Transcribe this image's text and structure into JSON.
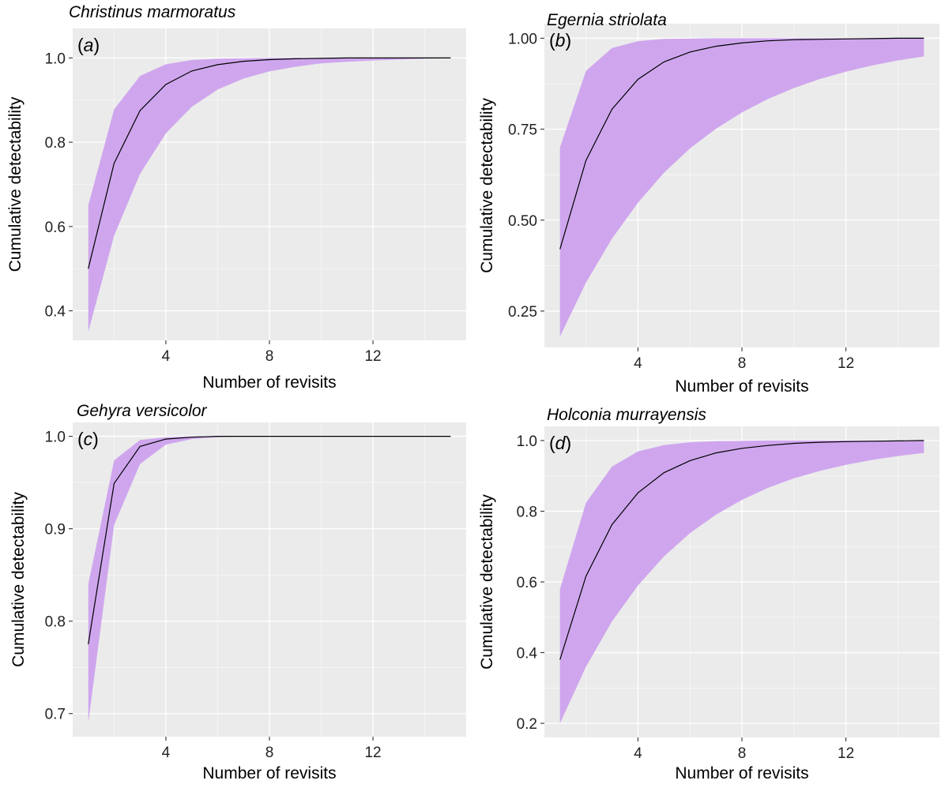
{
  "colors": {
    "panel_background": "#ebebeb",
    "gridline": "#ffffff",
    "band_fill": "#cfa6ee",
    "line": "#000000"
  },
  "chart_data": [
    {
      "type": "area",
      "panel": "a",
      "title": "Christinus marmoratus",
      "xlabel": "Number of revisits",
      "ylabel": "Cumulative detectability",
      "xlim": [
        0.4,
        15.6
      ],
      "ylim": [
        0.33,
        1.07
      ],
      "xticks": [
        4,
        8,
        12
      ],
      "yticks": [
        0.4,
        0.6,
        0.8,
        1.0
      ],
      "ytick_labels": [
        "0.4",
        "0.6",
        "0.8",
        "1.0"
      ],
      "grid": true,
      "x": [
        1,
        2,
        3,
        4,
        5,
        6,
        7,
        8,
        9,
        10,
        11,
        12,
        13,
        14,
        15
      ],
      "series": [
        {
          "role": "mean",
          "values": [
            0.5,
            0.75,
            0.875,
            0.937,
            0.969,
            0.984,
            0.992,
            0.996,
            0.998,
            0.999,
            1.0,
            1.0,
            1.0,
            1.0,
            1.0
          ]
        },
        {
          "role": "upper",
          "values": [
            0.65,
            0.878,
            0.957,
            0.985,
            0.995,
            0.998,
            0.999,
            1.0,
            1.0,
            1.0,
            1.0,
            1.0,
            1.0,
            1.0,
            1.0
          ]
        },
        {
          "role": "lower",
          "values": [
            0.35,
            0.578,
            0.725,
            0.821,
            0.884,
            0.925,
            0.951,
            0.968,
            0.979,
            0.987,
            0.991,
            0.994,
            0.996,
            0.998,
            0.999
          ]
        }
      ]
    },
    {
      "type": "area",
      "panel": "b",
      "title": "Egernia striolata",
      "xlabel": "Number of revisits",
      "ylabel": "Cumulative detectability",
      "xlim": [
        0.4,
        15.6
      ],
      "ylim": [
        0.15,
        1.04
      ],
      "xticks": [
        4,
        8,
        12
      ],
      "yticks": [
        0.25,
        0.5,
        0.75,
        1.0
      ],
      "ytick_labels": [
        "0.25",
        "0.50",
        "0.75",
        "1.00"
      ],
      "grid": true,
      "x": [
        1,
        2,
        3,
        4,
        5,
        6,
        7,
        8,
        9,
        10,
        11,
        12,
        13,
        14,
        15
      ],
      "series": [
        {
          "role": "mean",
          "values": [
            0.42,
            0.664,
            0.805,
            0.887,
            0.935,
            0.962,
            0.978,
            0.987,
            0.993,
            0.996,
            0.997,
            0.998,
            0.999,
            1.0,
            1.0
          ]
        },
        {
          "role": "upper",
          "values": [
            0.7,
            0.91,
            0.973,
            0.992,
            0.998,
            0.999,
            1.0,
            1.0,
            1.0,
            1.0,
            1.0,
            1.0,
            1.0,
            1.0,
            1.0
          ]
        },
        {
          "role": "lower",
          "values": [
            0.18,
            0.328,
            0.449,
            0.548,
            0.63,
            0.697,
            0.751,
            0.796,
            0.833,
            0.863,
            0.888,
            0.908,
            0.925,
            0.939,
            0.95
          ]
        }
      ]
    },
    {
      "type": "area",
      "panel": "c",
      "title": "Gehyra versicolor",
      "xlabel": "Number of revisits",
      "ylabel": "Cumulative detectability",
      "xlim": [
        0.4,
        15.6
      ],
      "ylim": [
        0.675,
        1.015
      ],
      "xticks": [
        4,
        8,
        12
      ],
      "yticks": [
        0.7,
        0.8,
        0.9,
        1.0
      ],
      "ytick_labels": [
        "0.7",
        "0.8",
        "0.9",
        "1.0"
      ],
      "grid": true,
      "x": [
        1,
        2,
        3,
        4,
        5,
        6,
        7,
        8,
        9,
        10,
        11,
        12,
        13,
        14,
        15
      ],
      "series": [
        {
          "role": "mean",
          "values": [
            0.775,
            0.949,
            0.989,
            0.997,
            0.999,
            1.0,
            1.0,
            1.0,
            1.0,
            1.0,
            1.0,
            1.0,
            1.0,
            1.0,
            1.0
          ]
        },
        {
          "role": "upper",
          "values": [
            0.84,
            0.974,
            0.996,
            0.999,
            1.0,
            1.0,
            1.0,
            1.0,
            1.0,
            1.0,
            1.0,
            1.0,
            1.0,
            1.0,
            1.0
          ]
        },
        {
          "role": "lower",
          "values": [
            0.69,
            0.904,
            0.97,
            0.991,
            0.997,
            0.999,
            1.0,
            1.0,
            1.0,
            1.0,
            1.0,
            1.0,
            1.0,
            1.0,
            1.0
          ]
        }
      ]
    },
    {
      "type": "area",
      "panel": "d",
      "title": "Holconia murrayensis",
      "xlabel": "Number of revisits",
      "ylabel": "Cumulative detectability",
      "xlim": [
        0.4,
        15.6
      ],
      "ylim": [
        0.16,
        1.04
      ],
      "xticks": [
        4,
        8,
        12
      ],
      "yticks": [
        0.2,
        0.4,
        0.6,
        0.8,
        1.0
      ],
      "ytick_labels": [
        "0.2",
        "0.4",
        "0.6",
        "0.8",
        "1.0"
      ],
      "grid": true,
      "x": [
        1,
        2,
        3,
        4,
        5,
        6,
        7,
        8,
        9,
        10,
        11,
        12,
        13,
        14,
        15
      ],
      "series": [
        {
          "role": "mean",
          "values": [
            0.38,
            0.616,
            0.762,
            0.852,
            0.909,
            0.943,
            0.965,
            0.978,
            0.986,
            0.992,
            0.995,
            0.997,
            0.998,
            0.999,
            1.0
          ]
        },
        {
          "role": "upper",
          "values": [
            0.58,
            0.824,
            0.926,
            0.969,
            0.987,
            0.995,
            0.998,
            0.999,
            1.0,
            1.0,
            1.0,
            1.0,
            1.0,
            1.0,
            1.0
          ]
        },
        {
          "role": "lower",
          "values": [
            0.2,
            0.36,
            0.488,
            0.59,
            0.672,
            0.738,
            0.79,
            0.832,
            0.866,
            0.893,
            0.914,
            0.931,
            0.945,
            0.956,
            0.965
          ]
        }
      ]
    }
  ]
}
